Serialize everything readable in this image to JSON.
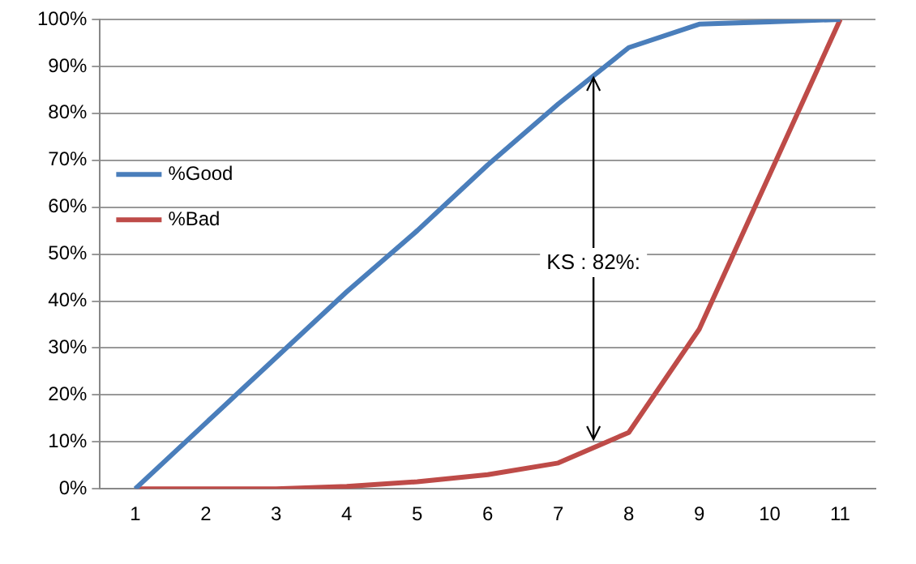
{
  "chart_data": {
    "type": "line",
    "categories": [
      "1",
      "2",
      "3",
      "4",
      "5",
      "6",
      "7",
      "8",
      "9",
      "10",
      "11"
    ],
    "series": [
      {
        "name": "%Good",
        "color": "#4a7ebb",
        "values": [
          0,
          14,
          28,
          42,
          55,
          69,
          82,
          94,
          99,
          99.5,
          100
        ]
      },
      {
        "name": "%Bad",
        "color": "#be4b48",
        "values": [
          0,
          0,
          0,
          0.5,
          1.5,
          3,
          5.5,
          12,
          34,
          67,
          100
        ]
      }
    ],
    "ylim": [
      0,
      100
    ],
    "yticks": [
      {
        "value": 0,
        "label": "0%"
      },
      {
        "value": 10,
        "label": "10%"
      },
      {
        "value": 20,
        "label": "20%"
      },
      {
        "value": 30,
        "label": "30%"
      },
      {
        "value": 40,
        "label": "40%"
      },
      {
        "value": 50,
        "label": "50%"
      },
      {
        "value": 60,
        "label": "60%"
      },
      {
        "value": 70,
        "label": "70%"
      },
      {
        "value": 80,
        "label": "80%"
      },
      {
        "value": 90,
        "label": "90%"
      },
      {
        "value": 100,
        "label": "100%"
      }
    ],
    "grid": "y",
    "legend": "left",
    "marker": "none",
    "line_style": "solid",
    "annotations": [
      "KS : 82%:"
    ]
  }
}
